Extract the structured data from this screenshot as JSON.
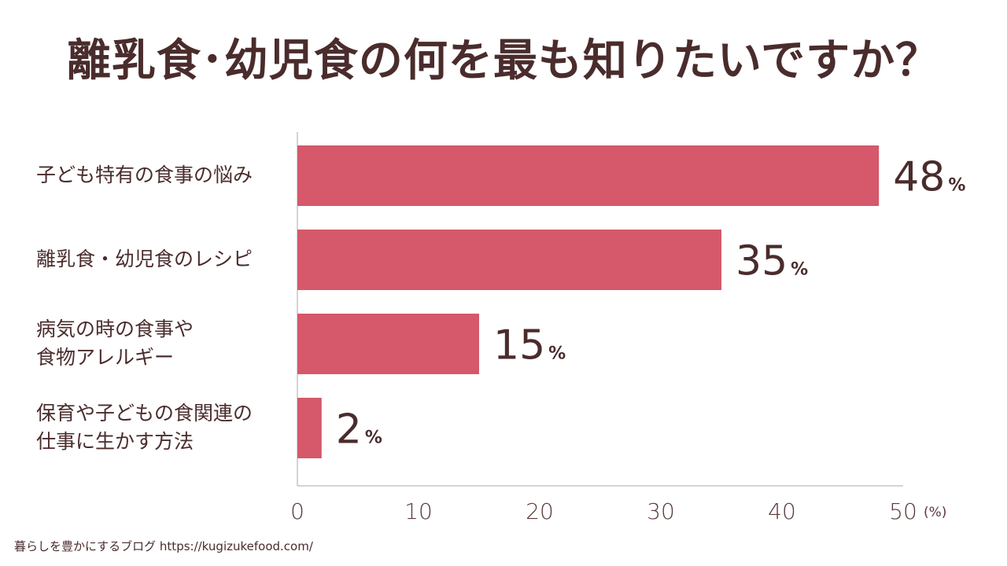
{
  "header": {
    "title": "離乳食･幼児食の何を最も知りたいですか？"
  },
  "chart_data": {
    "type": "bar",
    "orientation": "horizontal",
    "title": "離乳食･幼児食の何を最も知りたいですか？",
    "categories": [
      "子ども特有の食事の悩み",
      "離乳食・幼児食のレシピ",
      "病気の時の食事や\n食物アレルギー",
      "保育や子どもの食関連の\n仕事に生かす方法"
    ],
    "values": [
      48,
      35,
      15,
      2
    ],
    "value_suffix": "%",
    "xlim": [
      0,
      50
    ],
    "xticks": [
      "0",
      "10",
      "20",
      "30",
      "40",
      "50"
    ],
    "x_unit_label": "(%)",
    "bar_color": "#d5586b",
    "grid": false
  },
  "footer": {
    "source": "暮らしを豊かにするブログ https://kugizukefood.com/"
  }
}
